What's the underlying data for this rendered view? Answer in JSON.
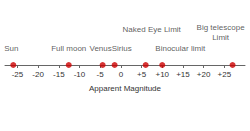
{
  "chart_data": {
    "type": "scatter",
    "x_label": "Apparent Magnitude",
    "x": [
      -26,
      -12.6,
      -4.4,
      -1.5,
      6,
      10,
      27
    ],
    "annotations": [
      "Sun",
      "Full moon",
      "Venus",
      "Sirius",
      "Naked Eye Limit",
      "Binocular limit",
      "Big telescope\nLimit"
    ],
    "color": "#cc0000",
    "marker": "circle",
    "xlim": [
      -28,
      30
    ],
    "xticks": [
      -25,
      -20,
      -15,
      -10,
      -5,
      0,
      {
        "value": 5,
        "label": "+5"
      },
      {
        "value": 10,
        "label": "+10"
      },
      {
        "value": 15,
        "label": "+15"
      },
      {
        "value": 20,
        "label": "+20"
      },
      {
        "value": 25,
        "label": "+25"
      }
    ],
    "tick_labels": "x",
    "grid": false
  }
}
